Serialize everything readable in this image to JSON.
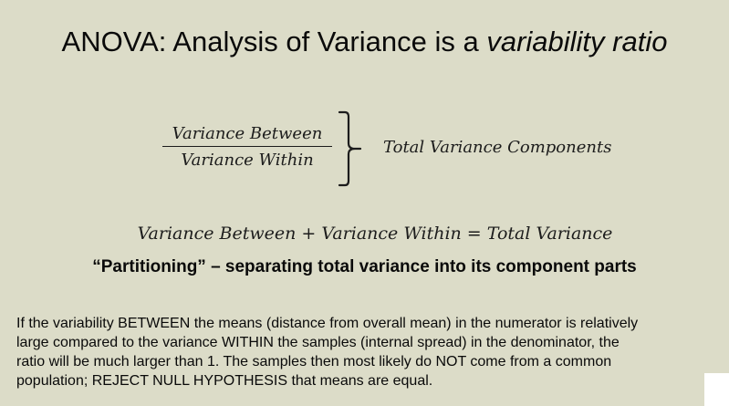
{
  "slide": {
    "title_prefix": "ANOVA: Analysis of Variance is a ",
    "title_emphasis": "variability ratio",
    "fraction": {
      "numerator": "Variance Between",
      "denominator": "Variance Within"
    },
    "components_label": "Total Variance Components",
    "equation": "Variance Between + Variance Within = Total Variance",
    "partitioning": "“Partitioning” – separating total variance into its component parts",
    "explanation_lines": [
      "If the variability BETWEEN the means (distance from overall mean) in the numerator is relatively",
      "large compared to the variance WITHIN the samples (internal spread) in the denominator, the",
      "ratio will be much larger than 1. The samples then most likely do NOT come from a common",
      "population; REJECT NULL HYPOTHESIS that means are equal."
    ]
  }
}
